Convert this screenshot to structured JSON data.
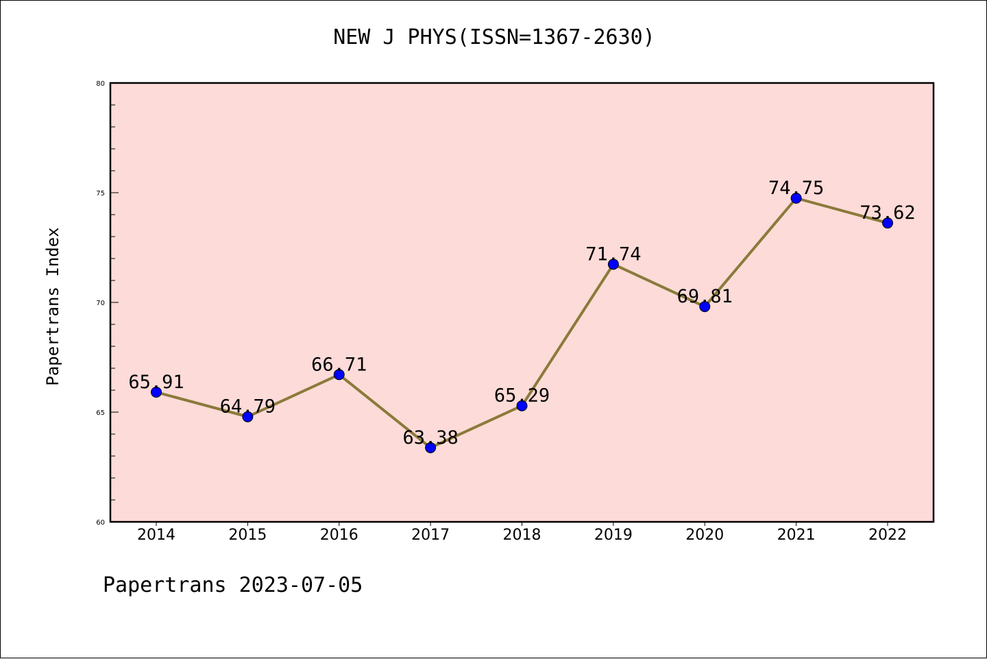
{
  "chart_data": {
    "type": "line",
    "title": "NEW J PHYS(ISSN=1367-2630)",
    "xlabel": "",
    "ylabel": "Papertrans Index",
    "categories": [
      "2014",
      "2015",
      "2016",
      "2017",
      "2018",
      "2019",
      "2020",
      "2021",
      "2022"
    ],
    "series": [
      {
        "values": [
          65.91,
          64.79,
          66.71,
          63.38,
          65.29,
          71.74,
          69.81,
          74.75,
          73.62
        ],
        "data_labels": [
          "65.91",
          "64.79",
          "66.71",
          "63.38",
          "65.29",
          "71.74",
          "69.81",
          "74.75",
          "73.62"
        ]
      }
    ],
    "ylim": [
      60,
      80
    ],
    "yticks": [
      60,
      65,
      70,
      75,
      80
    ],
    "grid": false,
    "legend": "none",
    "colors": {
      "plot_background": "#fddbd8",
      "line": "#8b7a3a",
      "marker": "#0000ff",
      "axes": "#000000"
    }
  },
  "footer": {
    "note": "Papertrans 2023-07-05"
  }
}
